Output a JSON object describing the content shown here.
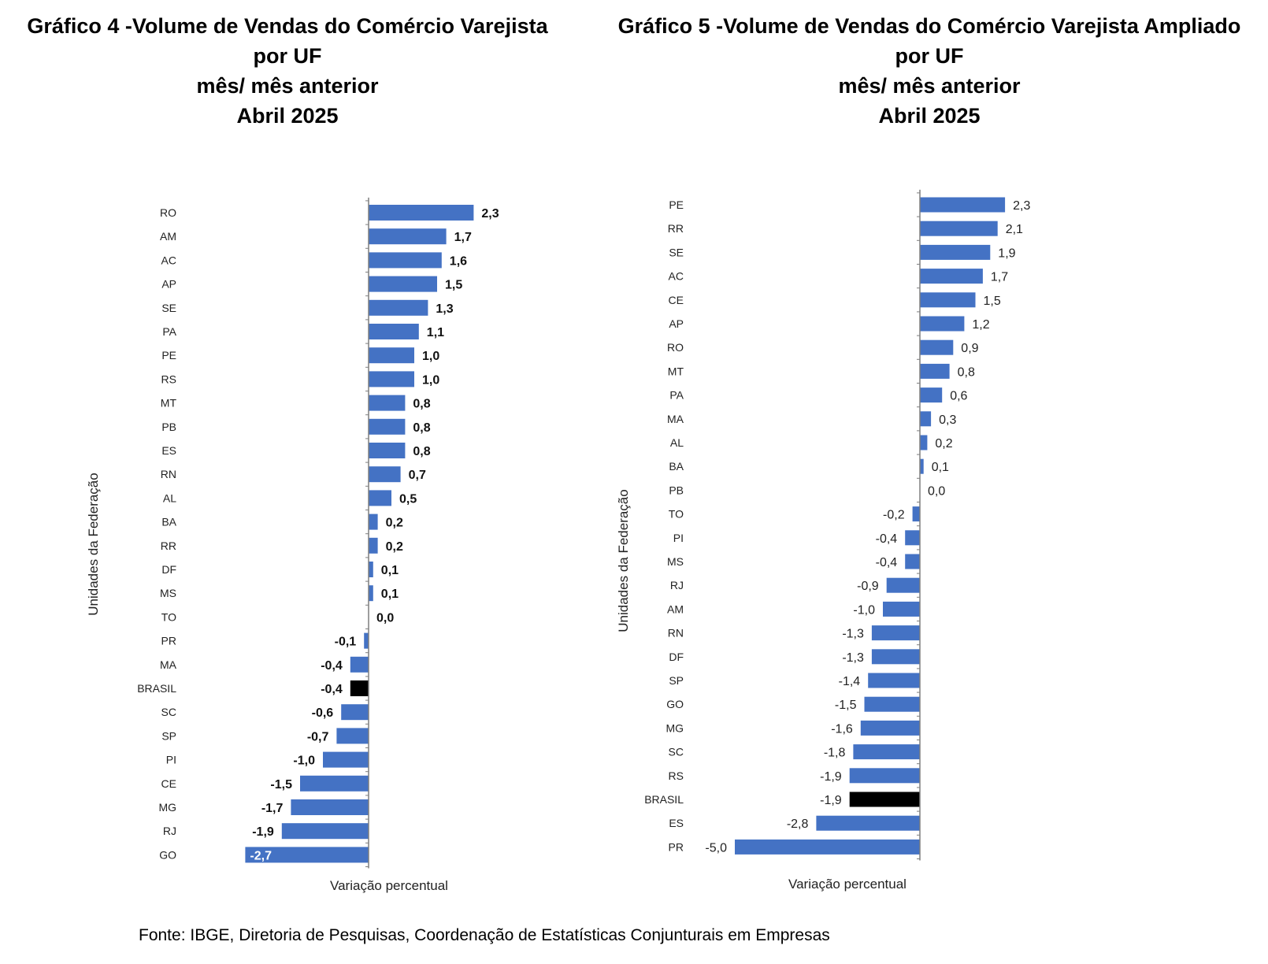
{
  "chart_data": [
    {
      "type": "bar",
      "orientation": "horizontal",
      "title": [
        "Gráfico 4 -Volume de Vendas do Comércio Varejista",
        "por UF",
        "mês/ mês anterior",
        "Abril 2025"
      ],
      "xlabel": "Variação percentual",
      "ylabel": "Unidades da Federação",
      "categories": [
        "RO",
        "AM",
        "AC",
        "AP",
        "SE",
        "PA",
        "PE",
        "RS",
        "MT",
        "PB",
        "ES",
        "RN",
        "AL",
        "BA",
        "RR",
        "DF",
        "MS",
        "TO",
        "PR",
        "MA",
        "BRASIL",
        "SC",
        "SP",
        "PI",
        "CE",
        "MG",
        "RJ",
        "GO"
      ],
      "values": [
        2.3,
        1.7,
        1.6,
        1.5,
        1.3,
        1.1,
        1.0,
        1.0,
        0.8,
        0.8,
        0.8,
        0.7,
        0.5,
        0.2,
        0.2,
        0.1,
        0.1,
        0.0,
        -0.1,
        -0.4,
        -0.4,
        -0.6,
        -0.7,
        -1.0,
        -1.5,
        -1.7,
        -1.9,
        -2.7
      ],
      "value_labels": [
        "2,3",
        "1,7",
        "1,6",
        "1,5",
        "1,3",
        "1,1",
        "1,0",
        "1,0",
        "0,8",
        "0,8",
        "0,8",
        "0,7",
        "0,5",
        "0,2",
        "0,2",
        "0,1",
        "0,1",
        "0,0",
        "-0,1",
        "-0,4",
        "-0,4",
        "-0,6",
        "-0,7",
        "-1,0",
        "-1,5",
        "-1,7",
        "-1,9",
        "-2,7"
      ],
      "highlight_category": "BRASIL",
      "colors": {
        "bar": "#4472C4",
        "highlight": "#000000",
        "axis": "#7f7f7f"
      }
    },
    {
      "type": "bar",
      "orientation": "horizontal",
      "title": [
        "Gráfico 5 -Volume de Vendas do Comércio Varejista Ampliado",
        "por UF",
        "mês/ mês anterior",
        "Abril 2025"
      ],
      "xlabel": "Variação percentual",
      "ylabel": "Unidades da Federação",
      "categories": [
        "PE",
        "RR",
        "SE",
        "AC",
        "CE",
        "AP",
        "RO",
        "MT",
        "PA",
        "MA",
        "AL",
        "BA",
        "PB",
        "TO",
        "PI",
        "MS",
        "RJ",
        "AM",
        "RN",
        "DF",
        "SP",
        "GO",
        "MG",
        "SC",
        "RS",
        "BRASIL",
        "ES",
        "PR"
      ],
      "values": [
        2.3,
        2.1,
        1.9,
        1.7,
        1.5,
        1.2,
        0.9,
        0.8,
        0.6,
        0.3,
        0.2,
        0.1,
        0.0,
        -0.2,
        -0.4,
        -0.4,
        -0.9,
        -1.0,
        -1.3,
        -1.3,
        -1.4,
        -1.5,
        -1.6,
        -1.8,
        -1.9,
        -1.9,
        -2.8,
        -5.0
      ],
      "value_labels": [
        "2,3",
        "2,1",
        "1,9",
        "1,7",
        "1,5",
        "1,2",
        "0,9",
        "0,8",
        "0,6",
        "0,3",
        "0,2",
        "0,1",
        "0,0",
        "-0,2",
        "-0,4",
        "-0,4",
        "-0,9",
        "-1,0",
        "-1,3",
        "-1,3",
        "-1,4",
        "-1,5",
        "-1,6",
        "-1,8",
        "-1,9",
        "-1,9",
        "-2,8",
        "-5,0"
      ],
      "highlight_category": "BRASIL",
      "colors": {
        "bar": "#4472C4",
        "highlight": "#000000",
        "axis": "#7f7f7f"
      }
    }
  ],
  "source": "Fonte: IBGE, Diretoria de Pesquisas, Coordenação de Estatísticas Conjunturais em Empresas"
}
